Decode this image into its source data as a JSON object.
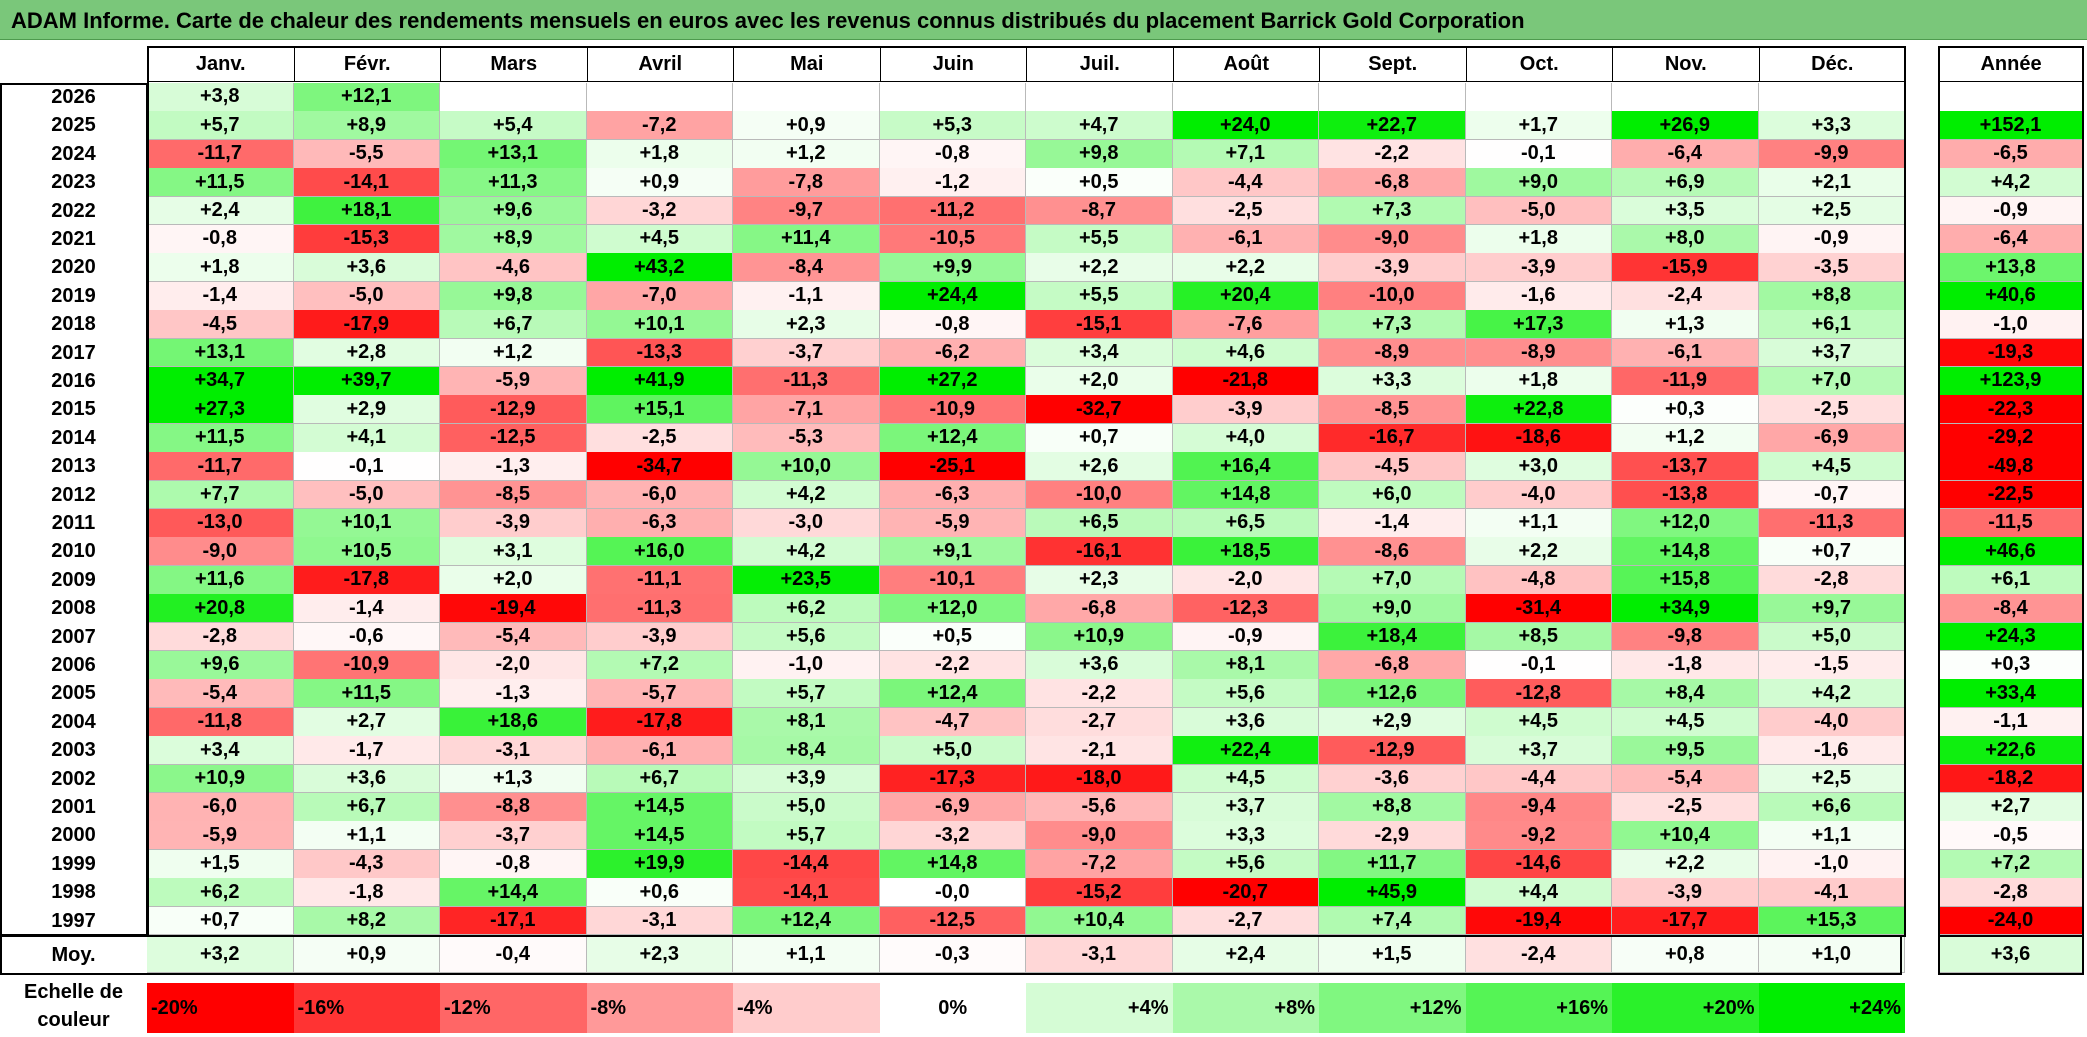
{
  "title": "ADAM Informe. Carte de chaleur des rendements mensuels en euros avec les revenus connus distribués du placement Barrick Gold Corporation",
  "colors": {
    "title_bg": "#7ac77a",
    "negative": "#ff0000",
    "neutral": "#ffffff",
    "positive": "#00ee00"
  },
  "chart_data": {
    "type": "heatmap",
    "title": "ADAM Informe. Carte de chaleur des rendements mensuels en euros avec les revenus connus distribués du placement Barrick Gold Corporation",
    "columns": [
      "Janv.",
      "Févr.",
      "Mars",
      "Avril",
      "Mai",
      "Juin",
      "Juil.",
      "Août",
      "Sept.",
      "Oct.",
      "Nov.",
      "Déc."
    ],
    "year_column": "Année",
    "rows": [
      {
        "label": "2026",
        "values": [
          "+3,8",
          "+12,1",
          "",
          "",
          "",
          "",
          "",
          "",
          "",
          "",
          "",
          ""
        ],
        "year": ""
      },
      {
        "label": "2025",
        "values": [
          "+5,7",
          "+8,9",
          "+5,4",
          "-7,2",
          "+0,9",
          "+5,3",
          "+4,7",
          "+24,0",
          "+22,7",
          "+1,7",
          "+26,9",
          "+3,3"
        ],
        "year": "+152,1"
      },
      {
        "label": "2024",
        "values": [
          "-11,7",
          "-5,5",
          "+13,1",
          "+1,8",
          "+1,2",
          "-0,8",
          "+9,8",
          "+7,1",
          "-2,2",
          "-0,1",
          "-6,4",
          "-9,9"
        ],
        "year": "-6,5"
      },
      {
        "label": "2023",
        "values": [
          "+11,5",
          "-14,1",
          "+11,3",
          "+0,9",
          "-7,8",
          "-1,2",
          "+0,5",
          "-4,4",
          "-6,8",
          "+9,0",
          "+6,9",
          "+2,1"
        ],
        "year": "+4,2"
      },
      {
        "label": "2022",
        "values": [
          "+2,4",
          "+18,1",
          "+9,6",
          "-3,2",
          "-9,7",
          "-11,2",
          "-8,7",
          "-2,5",
          "+7,3",
          "-5,0",
          "+3,5",
          "+2,5"
        ],
        "year": "-0,9"
      },
      {
        "label": "2021",
        "values": [
          "-0,8",
          "-15,3",
          "+8,9",
          "+4,5",
          "+11,4",
          "-10,5",
          "+5,5",
          "-6,1",
          "-9,0",
          "+1,8",
          "+8,0",
          "-0,9"
        ],
        "year": "-6,4"
      },
      {
        "label": "2020",
        "values": [
          "+1,8",
          "+3,6",
          "-4,6",
          "+43,2",
          "-8,4",
          "+9,9",
          "+2,2",
          "+2,2",
          "-3,9",
          "-3,9",
          "-15,9",
          "-3,5"
        ],
        "year": "+13,8"
      },
      {
        "label": "2019",
        "values": [
          "-1,4",
          "-5,0",
          "+9,8",
          "-7,0",
          "-1,1",
          "+24,4",
          "+5,5",
          "+20,4",
          "-10,0",
          "-1,6",
          "-2,4",
          "+8,8"
        ],
        "year": "+40,6"
      },
      {
        "label": "2018",
        "values": [
          "-4,5",
          "-17,9",
          "+6,7",
          "+10,1",
          "+2,3",
          "-0,8",
          "-15,1",
          "-7,6",
          "+7,3",
          "+17,3",
          "+1,3",
          "+6,1"
        ],
        "year": "-1,0"
      },
      {
        "label": "2017",
        "values": [
          "+13,1",
          "+2,8",
          "+1,2",
          "-13,3",
          "-3,7",
          "-6,2",
          "+3,4",
          "+4,6",
          "-8,9",
          "-8,9",
          "-6,1",
          "+3,7"
        ],
        "year": "-19,3"
      },
      {
        "label": "2016",
        "values": [
          "+34,7",
          "+39,7",
          "-5,9",
          "+41,9",
          "-11,3",
          "+27,2",
          "+2,0",
          "-21,8",
          "+3,3",
          "+1,8",
          "-11,9",
          "+7,0"
        ],
        "year": "+123,9"
      },
      {
        "label": "2015",
        "values": [
          "+27,3",
          "+2,9",
          "-12,9",
          "+15,1",
          "-7,1",
          "-10,9",
          "-32,7",
          "-3,9",
          "-8,5",
          "+22,8",
          "+0,3",
          "-2,5"
        ],
        "year": "-22,3"
      },
      {
        "label": "2014",
        "values": [
          "+11,5",
          "+4,1",
          "-12,5",
          "-2,5",
          "-5,3",
          "+12,4",
          "+0,7",
          "+4,0",
          "-16,7",
          "-18,6",
          "+1,2",
          "-6,9"
        ],
        "year": "-29,2"
      },
      {
        "label": "2013",
        "values": [
          "-11,7",
          "-0,1",
          "-1,3",
          "-34,7",
          "+10,0",
          "-25,1",
          "+2,6",
          "+16,4",
          "-4,5",
          "+3,0",
          "-13,7",
          "+4,5"
        ],
        "year": "-49,8"
      },
      {
        "label": "2012",
        "values": [
          "+7,7",
          "-5,0",
          "-8,5",
          "-6,0",
          "+4,2",
          "-6,3",
          "-10,0",
          "+14,8",
          "+6,0",
          "-4,0",
          "-13,8",
          "-0,7"
        ],
        "year": "-22,5"
      },
      {
        "label": "2011",
        "values": [
          "-13,0",
          "+10,1",
          "-3,9",
          "-6,3",
          "-3,0",
          "-5,9",
          "+6,5",
          "+6,5",
          "-1,4",
          "+1,1",
          "+12,0",
          "-11,3"
        ],
        "year": "-11,5"
      },
      {
        "label": "2010",
        "values": [
          "-9,0",
          "+10,5",
          "+3,1",
          "+16,0",
          "+4,2",
          "+9,1",
          "-16,1",
          "+18,5",
          "-8,6",
          "+2,2",
          "+14,8",
          "+0,7"
        ],
        "year": "+46,6"
      },
      {
        "label": "2009",
        "values": [
          "+11,6",
          "-17,8",
          "+2,0",
          "-11,1",
          "+23,5",
          "-10,1",
          "+2,3",
          "-2,0",
          "+7,0",
          "-4,8",
          "+15,8",
          "-2,8"
        ],
        "year": "+6,1"
      },
      {
        "label": "2008",
        "values": [
          "+20,8",
          "-1,4",
          "-19,4",
          "-11,3",
          "+6,2",
          "+12,0",
          "-6,8",
          "-12,3",
          "+9,0",
          "-31,4",
          "+34,9",
          "+9,7"
        ],
        "year": "-8,4"
      },
      {
        "label": "2007",
        "values": [
          "-2,8",
          "-0,6",
          "-5,4",
          "-3,9",
          "+5,6",
          "+0,5",
          "+10,9",
          "-0,9",
          "+18,4",
          "+8,5",
          "-9,8",
          "+5,0"
        ],
        "year": "+24,3"
      },
      {
        "label": "2006",
        "values": [
          "+9,6",
          "-10,9",
          "-2,0",
          "+7,2",
          "-1,0",
          "-2,2",
          "+3,6",
          "+8,1",
          "-6,8",
          "-0,1",
          "-1,8",
          "-1,5"
        ],
        "year": "+0,3"
      },
      {
        "label": "2005",
        "values": [
          "-5,4",
          "+11,5",
          "-1,3",
          "-5,7",
          "+5,7",
          "+12,4",
          "-2,2",
          "+5,6",
          "+12,6",
          "-12,8",
          "+8,4",
          "+4,2"
        ],
        "year": "+33,4"
      },
      {
        "label": "2004",
        "values": [
          "-11,8",
          "+2,7",
          "+18,6",
          "-17,8",
          "+8,1",
          "-4,7",
          "-2,7",
          "+3,6",
          "+2,9",
          "+4,5",
          "+4,5",
          "-4,0"
        ],
        "year": "-1,1"
      },
      {
        "label": "2003",
        "values": [
          "+3,4",
          "-1,7",
          "-3,1",
          "-6,1",
          "+8,4",
          "+5,0",
          "-2,1",
          "+22,4",
          "-12,9",
          "+3,7",
          "+9,5",
          "-1,6"
        ],
        "year": "+22,6"
      },
      {
        "label": "2002",
        "values": [
          "+10,9",
          "+3,6",
          "+1,3",
          "+6,7",
          "+3,9",
          "-17,3",
          "-18,0",
          "+4,5",
          "-3,6",
          "-4,4",
          "-5,4",
          "+2,5"
        ],
        "year": "-18,2"
      },
      {
        "label": "2001",
        "values": [
          "-6,0",
          "+6,7",
          "-8,8",
          "+14,5",
          "+5,0",
          "-6,9",
          "-5,6",
          "+3,7",
          "+8,8",
          "-9,4",
          "-2,5",
          "+6,6"
        ],
        "year": "+2,7"
      },
      {
        "label": "2000",
        "values": [
          "-5,9",
          "+1,1",
          "-3,7",
          "+14,5",
          "+5,7",
          "-3,2",
          "-9,0",
          "+3,3",
          "-2,9",
          "-9,2",
          "+10,4",
          "+1,1"
        ],
        "year": "-0,5"
      },
      {
        "label": "1999",
        "values": [
          "+1,5",
          "-4,3",
          "-0,8",
          "+19,9",
          "-14,4",
          "+14,8",
          "-7,2",
          "+5,6",
          "+11,7",
          "-14,6",
          "+2,2",
          "-1,0"
        ],
        "year": "+7,2"
      },
      {
        "label": "1998",
        "values": [
          "+6,2",
          "-1,8",
          "+14,4",
          "+0,6",
          "-14,1",
          "-0,0",
          "-15,2",
          "-20,7",
          "+45,9",
          "+4,4",
          "-3,9",
          "-4,1"
        ],
        "year": "-2,8"
      },
      {
        "label": "1997",
        "values": [
          "+0,7",
          "+8,2",
          "-17,1",
          "-3,1",
          "+12,4",
          "-12,5",
          "+10,4",
          "-2,7",
          "+7,4",
          "-19,4",
          "-17,7",
          "+15,3"
        ],
        "year": "-24,0"
      }
    ],
    "average": {
      "label": "Moy.",
      "values": [
        "+3,2",
        "+0,9",
        "-0,4",
        "+2,3",
        "+1,1",
        "-0,3",
        "-3,1",
        "+2,4",
        "+1,5",
        "-2,4",
        "+0,8",
        "+1,0"
      ],
      "year": "+3,6"
    },
    "legend": {
      "label": "Echelle de couleur",
      "entries": [
        {
          "text": "-20%",
          "value": -20
        },
        {
          "text": "-16%",
          "value": -16
        },
        {
          "text": "-12%",
          "value": -12
        },
        {
          "text": "-8%",
          "value": -8
        },
        {
          "text": "-4%",
          "value": -4
        },
        {
          "text": "0%",
          "value": 0
        },
        {
          "text": "+4%",
          "value": 4
        },
        {
          "text": "+8%",
          "value": 8
        },
        {
          "text": "+12%",
          "value": 12
        },
        {
          "text": "+16%",
          "value": 16
        },
        {
          "text": "+20%",
          "value": 20
        },
        {
          "text": "+24%",
          "value": 24
        }
      ]
    }
  }
}
